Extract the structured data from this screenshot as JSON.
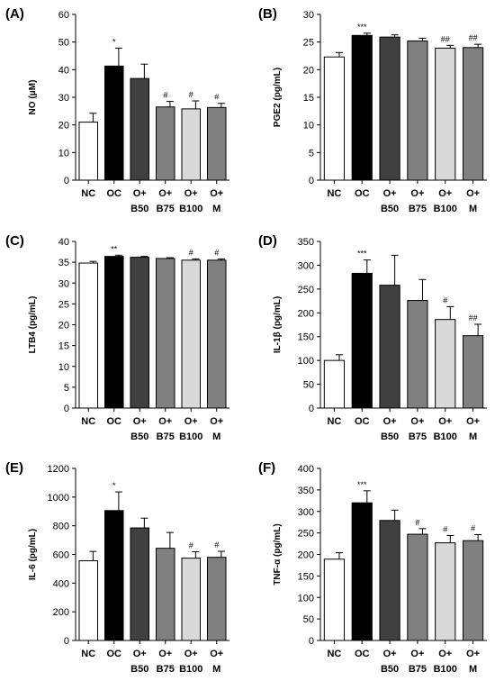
{
  "chart_data": [
    {
      "type": "bar",
      "panel": "(A)",
      "ylabel": "NO (μM)",
      "ylim": [
        0,
        60
      ],
      "yticks": [
        0,
        10,
        20,
        30,
        40,
        50,
        60
      ],
      "categories": [
        [
          "NC"
        ],
        [
          "OC"
        ],
        [
          "O+",
          "B50"
        ],
        [
          "O+",
          "B75"
        ],
        [
          "O+",
          "B100"
        ],
        [
          "O+",
          "M"
        ]
      ],
      "values": [
        21,
        41.3,
        36.8,
        26.5,
        25.8,
        26.3
      ],
      "errors": [
        3.2,
        6.5,
        5.2,
        2.0,
        2.9,
        1.5
      ],
      "significance": [
        "",
        "*",
        "",
        "#",
        "#",
        "#"
      ],
      "bar_colors": [
        "#ffffff",
        "#000000",
        "#404040",
        "#808080",
        "#d9d9d9",
        "#808080"
      ]
    },
    {
      "type": "bar",
      "panel": "(B)",
      "ylabel": "PGE2 (pg/mL)",
      "ylim": [
        0,
        30
      ],
      "yticks": [
        0,
        5,
        10,
        15,
        20,
        25,
        30
      ],
      "categories": [
        [
          "NC"
        ],
        [
          "OC"
        ],
        [
          "O+",
          "B50"
        ],
        [
          "O+",
          "B75"
        ],
        [
          "O+",
          "B100"
        ],
        [
          "O+",
          "M"
        ]
      ],
      "values": [
        22.3,
        26.2,
        25.9,
        25.2,
        23.9,
        24.0
      ],
      "errors": [
        0.8,
        0.4,
        0.4,
        0.5,
        0.5,
        0.6
      ],
      "significance": [
        "",
        "***",
        "",
        "",
        "##",
        "##"
      ],
      "bar_colors": [
        "#ffffff",
        "#000000",
        "#404040",
        "#808080",
        "#d9d9d9",
        "#808080"
      ]
    },
    {
      "type": "bar",
      "panel": "(C)",
      "ylabel": "LTB4 (pg/mL)",
      "ylim": [
        0,
        40
      ],
      "yticks": [
        0,
        5,
        10,
        15,
        20,
        25,
        30,
        35,
        40
      ],
      "categories": [
        [
          "NC"
        ],
        [
          "OC"
        ],
        [
          "O+",
          "B50"
        ],
        [
          "O+",
          "B75"
        ],
        [
          "O+",
          "B100"
        ],
        [
          "O+",
          "M"
        ]
      ],
      "values": [
        34.8,
        36.4,
        36.2,
        35.9,
        35.5,
        35.5
      ],
      "errors": [
        0.4,
        0.3,
        0.2,
        0.2,
        0.3,
        0.3
      ],
      "significance": [
        "",
        "**",
        "",
        "",
        "#",
        "#"
      ],
      "bar_colors": [
        "#ffffff",
        "#000000",
        "#404040",
        "#808080",
        "#d9d9d9",
        "#808080"
      ]
    },
    {
      "type": "bar",
      "panel": "(D)",
      "ylabel": "IL-1β (pg/mL)",
      "ylim": [
        0,
        350
      ],
      "yticks": [
        0,
        50,
        100,
        150,
        200,
        250,
        300,
        350
      ],
      "categories": [
        [
          "NC"
        ],
        [
          "OC"
        ],
        [
          "O+",
          "B50"
        ],
        [
          "O+",
          "B75"
        ],
        [
          "O+",
          "B100"
        ],
        [
          "O+",
          "M"
        ]
      ],
      "values": [
        100,
        283,
        258,
        226,
        186,
        152
      ],
      "errors": [
        12,
        28,
        63,
        44,
        27,
        24
      ],
      "significance": [
        "",
        "***",
        "",
        "",
        "#",
        "##"
      ],
      "bar_colors": [
        "#ffffff",
        "#000000",
        "#404040",
        "#808080",
        "#d9d9d9",
        "#808080"
      ]
    },
    {
      "type": "bar",
      "panel": "(E)",
      "ylabel": "IL-6 (pg/mL)",
      "ylim": [
        0,
        1200
      ],
      "yticks": [
        0,
        200,
        400,
        600,
        800,
        1000,
        1200
      ],
      "categories": [
        [
          "NC"
        ],
        [
          "OC"
        ],
        [
          "O+",
          "B50"
        ],
        [
          "O+",
          "B75"
        ],
        [
          "O+",
          "B100"
        ],
        [
          "O+",
          "M"
        ]
      ],
      "values": [
        556,
        906,
        785,
        643,
        574,
        580
      ],
      "errors": [
        65,
        130,
        68,
        110,
        45,
        42
      ],
      "significance": [
        "",
        "*",
        "",
        "",
        "#",
        "#"
      ],
      "bar_colors": [
        "#ffffff",
        "#000000",
        "#404040",
        "#808080",
        "#d9d9d9",
        "#808080"
      ]
    },
    {
      "type": "bar",
      "panel": "(F)",
      "ylabel": "TNF-α (pg/mL)",
      "ylim": [
        0,
        400
      ],
      "yticks": [
        0,
        50,
        100,
        150,
        200,
        250,
        300,
        350,
        400
      ],
      "categories": [
        [
          "NC"
        ],
        [
          "OC"
        ],
        [
          "O+",
          "B50"
        ],
        [
          "O+",
          "B75"
        ],
        [
          "O+",
          "B100"
        ],
        [
          "O+",
          "M"
        ]
      ],
      "values": [
        189,
        320,
        279,
        247,
        227,
        232
      ],
      "errors": [
        15,
        28,
        24,
        13,
        17,
        14
      ],
      "significance": [
        "",
        "***",
        "",
        "#",
        "#",
        "#"
      ],
      "bar_colors": [
        "#ffffff",
        "#000000",
        "#404040",
        "#808080",
        "#d9d9d9",
        "#808080"
      ]
    }
  ]
}
